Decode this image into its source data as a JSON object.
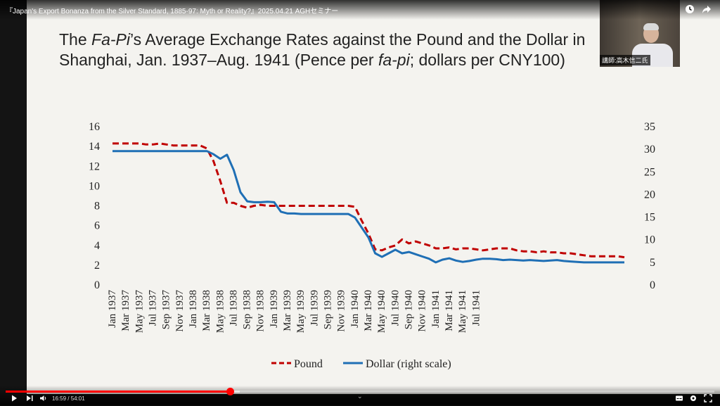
{
  "video": {
    "title": "『Japan's Export Bonanza from the Silver Standard, 1885-97: Myth or Reality?』2025.04.21 AGHセミナー",
    "time_current": "16:59",
    "time_total": "54:01",
    "time_display": "16:59 / 54:01",
    "progress": 0.316,
    "buffered": 0.33
  },
  "slide": {
    "title_line1_a": "The ",
    "title_line1_b": "Fa-Pi",
    "title_line1_c": "’s Average Exchange Rates against the Pound and the Dollar in",
    "title_line2_a": "Shanghai, Jan. 1937–Aug. 1941 (Pence per ",
    "title_line2_b": "fa-pi",
    "title_line2_c": "; dollars per CNY100)"
  },
  "webcam": {
    "caption": "講師:高木信二氏"
  },
  "icons": {
    "top": [
      "clock-icon",
      "share-icon"
    ],
    "controls": [
      "play-icon",
      "next-icon",
      "volume-icon",
      "subtitles-icon",
      "settings-icon",
      "fullscreen-icon"
    ]
  },
  "colors": {
    "pound": "#c00000",
    "dollar": "#1f6fb5",
    "progress": "#ff0000"
  },
  "chart_data": {
    "type": "line",
    "x_tick_labels": [
      "Jan 1937",
      "Mar 1937",
      "May 1937",
      "Jul 1937",
      "Sep 1937",
      "Nov 1937",
      "Jan 1938",
      "Mar 1938",
      "May 1938",
      "Jul 1938",
      "Sep 1938",
      "Nov 1938",
      "Jan 1939",
      "Mar 1939",
      "May 1939",
      "Jul 1939",
      "Sep 1939",
      "Nov 1939",
      "Jan 1940",
      "Mar 1940",
      "May 1940",
      "Jul 1940",
      "Sep 1940",
      "Nov 1940",
      "Jan 1941",
      "Mar 1941",
      "May 1941",
      "Jul 1941"
    ],
    "x_start": "1937-01",
    "y_left_ticks": [
      "0",
      "2",
      "4",
      "6",
      "8",
      "10",
      "12",
      "14",
      "16"
    ],
    "y_right_ticks": [
      "0",
      "5",
      "10",
      "15",
      "20",
      "25",
      "30",
      "35"
    ],
    "y_left_lim": [
      0,
      16
    ],
    "y_right_lim": [
      0,
      35
    ],
    "series": [
      {
        "name": "Pound",
        "axis": "left",
        "style": "dashed",
        "values": [
          14.3,
          14.3,
          14.3,
          14.3,
          14.3,
          14.2,
          14.2,
          14.3,
          14.2,
          14.1,
          14.1,
          14.1,
          14.1,
          14.1,
          13.8,
          12.5,
          10.5,
          8.3,
          8.3,
          8.0,
          7.8,
          8.0,
          8.1,
          8.0,
          8.0,
          8.0,
          8.0,
          8.0,
          8.0,
          8.0,
          8.0,
          8.0,
          8.0,
          8.0,
          8.0,
          8.0,
          7.9,
          6.5,
          5.2,
          3.6,
          3.5,
          3.8,
          4.0,
          4.6,
          4.2,
          4.4,
          4.2,
          4.0,
          3.7,
          3.7,
          3.8,
          3.6,
          3.7,
          3.7,
          3.6,
          3.5,
          3.6,
          3.7,
          3.7,
          3.7,
          3.5,
          3.4,
          3.4,
          3.3,
          3.4,
          3.3,
          3.3,
          3.2,
          3.2,
          3.1,
          3.0,
          2.9,
          2.9,
          2.9,
          2.9,
          2.9,
          2.8
        ]
      },
      {
        "name": "Dollar (right scale)",
        "axis": "right",
        "style": "solid",
        "values": [
          29.6,
          29.6,
          29.6,
          29.6,
          29.6,
          29.6,
          29.6,
          29.6,
          29.6,
          29.6,
          29.6,
          29.6,
          29.6,
          29.6,
          29.6,
          28.9,
          27.9,
          28.8,
          25.4,
          20.5,
          18.5,
          18.3,
          18.3,
          18.4,
          18.3,
          16.2,
          15.8,
          15.8,
          15.7,
          15.7,
          15.7,
          15.7,
          15.7,
          15.7,
          15.7,
          15.7,
          14.9,
          12.7,
          10.5,
          7.0,
          6.2,
          7.0,
          7.8,
          7.0,
          7.3,
          6.8,
          6.3,
          5.8,
          5.0,
          5.6,
          5.9,
          5.4,
          5.1,
          5.3,
          5.6,
          5.8,
          5.8,
          5.7,
          5.5,
          5.6,
          5.5,
          5.4,
          5.5,
          5.4,
          5.3,
          5.4,
          5.5,
          5.3,
          5.2,
          5.1,
          5.0,
          5.0,
          5.0,
          5.0,
          5.0,
          5.0,
          5.0
        ]
      }
    ]
  }
}
